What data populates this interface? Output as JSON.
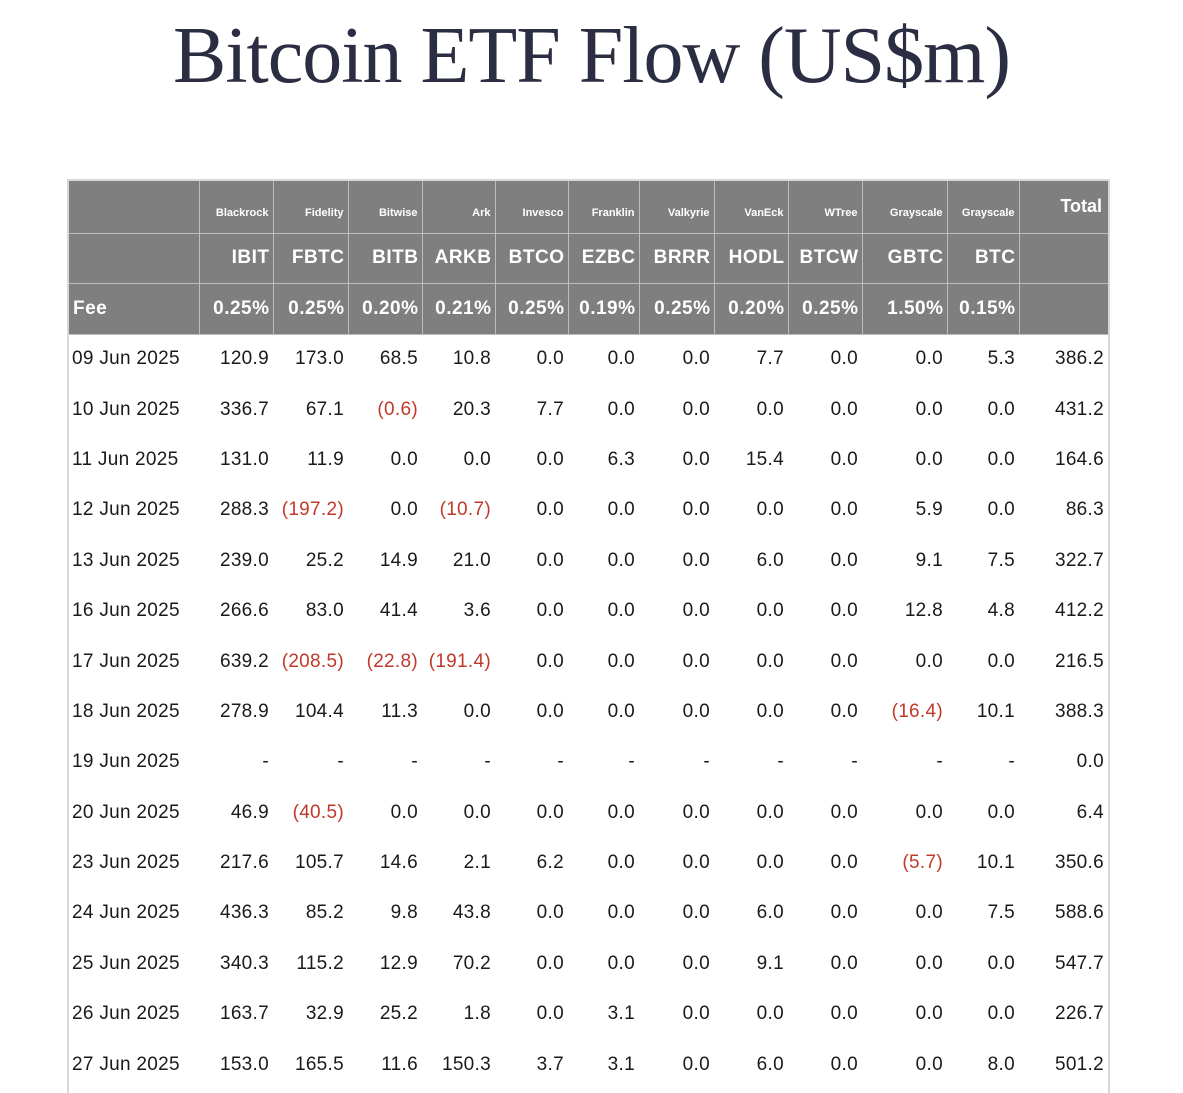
{
  "title": "Bitcoin ETF Flow (US$m)",
  "colors": {
    "header_bg": "#7f7f7f",
    "negative": "#c0392b",
    "title": "#2b2d42"
  },
  "columns": [
    {
      "issuer": "Blackrock",
      "ticker": "IBIT",
      "fee": "0.25%"
    },
    {
      "issuer": "Fidelity",
      "ticker": "FBTC",
      "fee": "0.25%"
    },
    {
      "issuer": "Bitwise",
      "ticker": "BITB",
      "fee": "0.20%"
    },
    {
      "issuer": "Ark",
      "ticker": "ARKB",
      "fee": "0.21%"
    },
    {
      "issuer": "Invesco",
      "ticker": "BTCO",
      "fee": "0.25%"
    },
    {
      "issuer": "Franklin",
      "ticker": "EZBC",
      "fee": "0.19%"
    },
    {
      "issuer": "Valkyrie",
      "ticker": "BRRR",
      "fee": "0.25%"
    },
    {
      "issuer": "VanEck",
      "ticker": "HODL",
      "fee": "0.20%"
    },
    {
      "issuer": "WTree",
      "ticker": "BTCW",
      "fee": "0.25%"
    },
    {
      "issuer": "Grayscale",
      "ticker": "GBTC",
      "fee": "1.50%"
    },
    {
      "issuer": "Grayscale",
      "ticker": "BTC",
      "fee": "0.15%"
    }
  ],
  "total_label": "Total",
  "fee_label": "Fee",
  "chart_data": {
    "type": "table",
    "title": "Bitcoin ETF Flow (US$m)",
    "headers": [
      "IBIT",
      "FBTC",
      "BITB",
      "ARKB",
      "BTCO",
      "EZBC",
      "BRRR",
      "HODL",
      "BTCW",
      "GBTC",
      "BTC",
      "Total"
    ],
    "rows": [
      {
        "date": "09 Jun 2025",
        "values": [
          "120.9",
          "173.0",
          "68.5",
          "10.8",
          "0.0",
          "0.0",
          "0.0",
          "7.7",
          "0.0",
          "0.0",
          "5.3",
          "386.2"
        ]
      },
      {
        "date": "10 Jun 2025",
        "values": [
          "336.7",
          "67.1",
          "(0.6)",
          "20.3",
          "7.7",
          "0.0",
          "0.0",
          "0.0",
          "0.0",
          "0.0",
          "0.0",
          "431.2"
        ]
      },
      {
        "date": "11 Jun 2025",
        "values": [
          "131.0",
          "11.9",
          "0.0",
          "0.0",
          "0.0",
          "6.3",
          "0.0",
          "15.4",
          "0.0",
          "0.0",
          "0.0",
          "164.6"
        ]
      },
      {
        "date": "12 Jun 2025",
        "values": [
          "288.3",
          "(197.2)",
          "0.0",
          "(10.7)",
          "0.0",
          "0.0",
          "0.0",
          "0.0",
          "0.0",
          "5.9",
          "0.0",
          "86.3"
        ]
      },
      {
        "date": "13 Jun 2025",
        "values": [
          "239.0",
          "25.2",
          "14.9",
          "21.0",
          "0.0",
          "0.0",
          "0.0",
          "6.0",
          "0.0",
          "9.1",
          "7.5",
          "322.7"
        ]
      },
      {
        "date": "16 Jun 2025",
        "values": [
          "266.6",
          "83.0",
          "41.4",
          "3.6",
          "0.0",
          "0.0",
          "0.0",
          "0.0",
          "0.0",
          "12.8",
          "4.8",
          "412.2"
        ]
      },
      {
        "date": "17 Jun 2025",
        "values": [
          "639.2",
          "(208.5)",
          "(22.8)",
          "(191.4)",
          "0.0",
          "0.0",
          "0.0",
          "0.0",
          "0.0",
          "0.0",
          "0.0",
          "216.5"
        ]
      },
      {
        "date": "18 Jun 2025",
        "values": [
          "278.9",
          "104.4",
          "11.3",
          "0.0",
          "0.0",
          "0.0",
          "0.0",
          "0.0",
          "0.0",
          "(16.4)",
          "10.1",
          "388.3"
        ]
      },
      {
        "date": "19 Jun 2025",
        "values": [
          "-",
          "-",
          "-",
          "-",
          "-",
          "-",
          "-",
          "-",
          "-",
          "-",
          "-",
          "0.0"
        ]
      },
      {
        "date": "20 Jun 2025",
        "values": [
          "46.9",
          "(40.5)",
          "0.0",
          "0.0",
          "0.0",
          "0.0",
          "0.0",
          "0.0",
          "0.0",
          "0.0",
          "0.0",
          "6.4"
        ]
      },
      {
        "date": "23 Jun 2025",
        "values": [
          "217.6",
          "105.7",
          "14.6",
          "2.1",
          "6.2",
          "0.0",
          "0.0",
          "0.0",
          "0.0",
          "(5.7)",
          "10.1",
          "350.6"
        ]
      },
      {
        "date": "24 Jun 2025",
        "values": [
          "436.3",
          "85.2",
          "9.8",
          "43.8",
          "0.0",
          "0.0",
          "0.0",
          "6.0",
          "0.0",
          "0.0",
          "7.5",
          "588.6"
        ]
      },
      {
        "date": "25 Jun 2025",
        "values": [
          "340.3",
          "115.2",
          "12.9",
          "70.2",
          "0.0",
          "0.0",
          "0.0",
          "9.1",
          "0.0",
          "0.0",
          "0.0",
          "547.7"
        ]
      },
      {
        "date": "26 Jun 2025",
        "values": [
          "163.7",
          "32.9",
          "25.2",
          "1.8",
          "0.0",
          "3.1",
          "0.0",
          "0.0",
          "0.0",
          "0.0",
          "0.0",
          "226.7"
        ]
      },
      {
        "date": "27 Jun 2025",
        "values": [
          "153.0",
          "165.5",
          "11.6",
          "150.3",
          "3.7",
          "3.1",
          "0.0",
          "6.0",
          "0.0",
          "0.0",
          "8.0",
          "501.2"
        ]
      }
    ]
  }
}
